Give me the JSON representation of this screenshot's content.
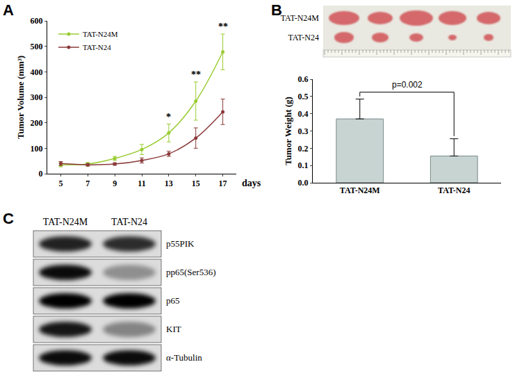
{
  "chart_data": [
    {
      "panel": "A",
      "type": "line",
      "x": [
        5,
        7,
        9,
        11,
        13,
        15,
        17
      ],
      "xlabel": "days",
      "ylabel": "Tumor Volume (mm³)",
      "xlim": [
        4,
        18
      ],
      "xticks": [
        5,
        7,
        9,
        11,
        13,
        15,
        17
      ],
      "ylim": [
        0,
        600
      ],
      "yticks": [
        0,
        100,
        200,
        300,
        400,
        500,
        600
      ],
      "grid": false,
      "legend": "upper left",
      "series": [
        {
          "name": "TAT-N24M",
          "color": "#99cc33",
          "marker": "circle",
          "values": [
            35,
            38,
            60,
            95,
            160,
            285,
            478
          ],
          "errors": [
            8,
            6,
            8,
            20,
            35,
            75,
            70
          ]
        },
        {
          "name": "TAT-N24",
          "color": "#8b3a3a",
          "marker": "circle",
          "values": [
            40,
            35,
            38,
            52,
            78,
            140,
            243
          ],
          "errors": [
            8,
            5,
            5,
            10,
            10,
            40,
            50
          ]
        }
      ],
      "annotations": [
        {
          "x": 13,
          "text": "*"
        },
        {
          "x": 15,
          "text": "**"
        },
        {
          "x": 17,
          "text": "**"
        }
      ]
    },
    {
      "panel": "B",
      "type": "bar",
      "photo_rows": [
        "TAT-N24M",
        "TAT-N24"
      ],
      "categories": [
        "TAT-N24M",
        "TAT-N24"
      ],
      "values": [
        0.37,
        0.155
      ],
      "errors": [
        0.115,
        0.1
      ],
      "color": "#c8d4d2",
      "ylabel": "Tumor Weight (g)",
      "ylim": [
        0,
        0.6
      ],
      "yticks": [
        {
          "value": 0,
          "label": "0.0"
        },
        0.1,
        0.2,
        0.3,
        0.4,
        0.5,
        0.6
      ],
      "grid": false,
      "annotations": [
        {
          "between": [
            "TAT-N24M",
            "TAT-N24"
          ],
          "text": "p=0.002"
        }
      ]
    },
    {
      "panel": "C",
      "type": "blot",
      "columns": [
        "TAT-N24M",
        "TAT-N24"
      ],
      "bands": [
        {
          "label": "p55PIK",
          "intensity": [
            0.85,
            0.8
          ]
        },
        {
          "label": "pp65(Ser536)",
          "intensity": [
            0.95,
            0.35
          ]
        },
        {
          "label": "p65",
          "intensity": [
            1,
            1
          ]
        },
        {
          "label": "KIT",
          "intensity": [
            0.9,
            0.4
          ]
        },
        {
          "label": "α-Tubulin",
          "intensity": [
            0.95,
            0.95
          ]
        }
      ]
    }
  ]
}
